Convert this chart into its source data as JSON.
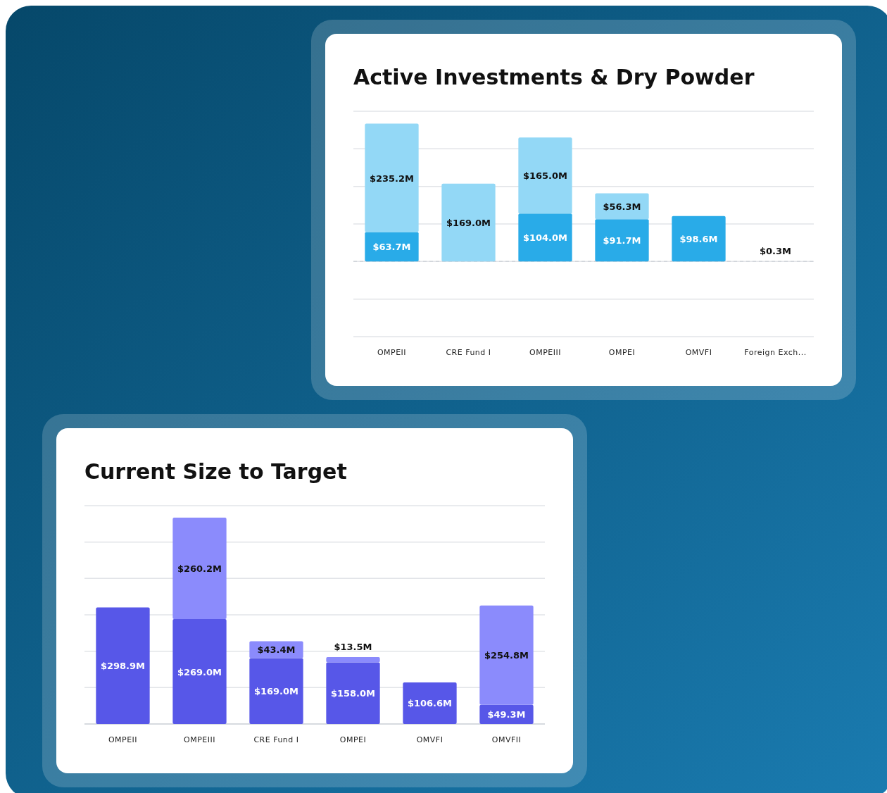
{
  "chart_data": [
    {
      "type": "bar",
      "title": "Active Investments & Dry Powder",
      "stacked": true,
      "grid": "y",
      "categories": [
        "OMPEII",
        "CRE Fund I",
        "OMPEIII",
        "OMPEI",
        "OMVFI",
        "Foreign Exch..."
      ],
      "series": [
        {
          "color": "#29abe8",
          "values": [
            63.7,
            null,
            104.0,
            91.7,
            98.6,
            0.3
          ],
          "value_labels": [
            "$63.7M",
            null,
            "$104.0M",
            "$91.7M",
            "$98.6M",
            "$0.3M"
          ]
        },
        {
          "color": "#93d8f6",
          "values": [
            235.2,
            169.0,
            165.0,
            56.3,
            null,
            null
          ],
          "value_labels": [
            "$235.2M",
            "$169.0M",
            "$165.0M",
            "$56.3M",
            null,
            null
          ]
        }
      ],
      "tick_labels": "x"
    },
    {
      "type": "bar",
      "title": "Current Size to Target",
      "stacked": true,
      "grid": "y",
      "categories": [
        "OMPEII",
        "OMPEIII",
        "CRE Fund I",
        "OMPEI",
        "OMVFI",
        "OMVFII"
      ],
      "series": [
        {
          "color": "#5757e8",
          "values": [
            298.9,
            269.0,
            169.0,
            158.0,
            106.6,
            49.3
          ],
          "value_labels": [
            "$298.9M",
            "$269.0M",
            "$169.0M",
            "$158.0M",
            "$106.6M",
            "$49.3M"
          ]
        },
        {
          "color": "#8b8bfc",
          "values": [
            null,
            260.2,
            43.4,
            13.5,
            null,
            254.8
          ],
          "value_labels": [
            null,
            "$260.2M",
            "$43.4M",
            "$13.5M",
            null,
            "$254.8M"
          ]
        }
      ],
      "tick_labels": "x"
    }
  ]
}
